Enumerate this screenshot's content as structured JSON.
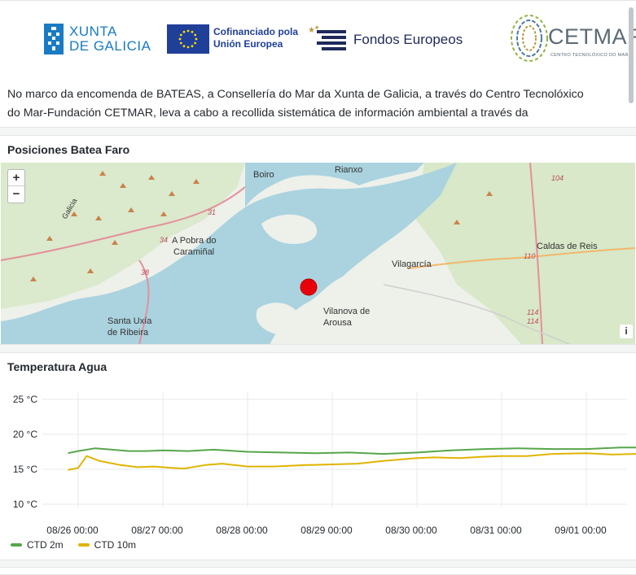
{
  "intro": {
    "logos": {
      "xunta_line1": "XUNTA",
      "xunta_line2": "DE GALICIA",
      "eu_line1": "Cofinanciado pola",
      "eu_line2": "Unión Europea",
      "fondos": "Fondos Europeos",
      "cetmar": "CETMAR",
      "cetmar_sub": "CENTRO TECNOLÓXICO DO MAR"
    },
    "text_line1": "No marco da encomenda de BATEAS, a Consellería do Mar da Xunta de Galicia, a través do Centro Tecnolóxico",
    "text_line2": "do Mar-Fundación CETMAR, leva a cabo a recollida sistemática de información ambiental a través da"
  },
  "map_panel": {
    "title": "Posiciones Batea Faro",
    "zoom_in": "+",
    "zoom_out": "−",
    "attribution": "i",
    "labels": {
      "boiro": "Boiro",
      "rianxo": "Rianxo",
      "pobra1": "A Pobra do",
      "pobra2": "Caramiñal",
      "vilagarcia": "Vilagarcía",
      "caldas": "Caldas de Reis",
      "vilanova1": "Vilanova de",
      "vilanova2": "Arousa",
      "santa1": "Santa Uxía",
      "santa2": "de Ribeira",
      "galicia_road": "Galicia"
    },
    "road_numbers": [
      "31",
      "34",
      "38",
      "104",
      "110",
      "114",
      "114"
    ],
    "marker_color": "#e8000b"
  },
  "temp_panel": {
    "title": "Temperatura Agua",
    "legend": [
      {
        "name": "CTD 2m",
        "color": "#56a64b"
      },
      {
        "name": "CTD 10m",
        "color": "#e0b400"
      }
    ]
  },
  "chart_data": {
    "type": "line",
    "title": "Temperatura Agua",
    "y_ticks": [
      "25 °C",
      "20 °C",
      "15 °C",
      "10 °C"
    ],
    "ylim": [
      10,
      25
    ],
    "x_ticks": [
      "08/26 00:00",
      "08/27 00:00",
      "08/28 00:00",
      "08/29 00:00",
      "08/30 00:00",
      "08/31 00:00",
      "09/01 00:00"
    ],
    "x_days_range": [
      -0.2,
      7.6
    ],
    "grid": true,
    "legend_position": "bottom-left",
    "series": [
      {
        "name": "CTD 2m",
        "color": "#56a64b",
        "points": [
          [
            -0.12,
            17.3
          ],
          [
            0.0,
            17.6
          ],
          [
            0.2,
            18.0
          ],
          [
            0.4,
            17.8
          ],
          [
            0.6,
            17.6
          ],
          [
            0.8,
            17.6
          ],
          [
            1.0,
            17.7
          ],
          [
            1.3,
            17.6
          ],
          [
            1.6,
            17.8
          ],
          [
            2.0,
            17.5
          ],
          [
            2.4,
            17.4
          ],
          [
            2.8,
            17.3
          ],
          [
            3.2,
            17.4
          ],
          [
            3.6,
            17.2
          ],
          [
            4.0,
            17.4
          ],
          [
            4.4,
            17.7
          ],
          [
            4.8,
            17.9
          ],
          [
            5.2,
            18.0
          ],
          [
            5.6,
            17.9
          ],
          [
            6.0,
            17.9
          ],
          [
            6.4,
            18.1
          ],
          [
            6.8,
            18.1
          ],
          [
            7.2,
            18.3
          ],
          [
            7.55,
            18.7
          ]
        ]
      },
      {
        "name": "CTD 10m",
        "color": "#e0b400",
        "points": [
          [
            -0.12,
            14.9
          ],
          [
            0.0,
            15.2
          ],
          [
            0.1,
            16.9
          ],
          [
            0.25,
            16.2
          ],
          [
            0.5,
            15.6
          ],
          [
            0.7,
            15.3
          ],
          [
            0.9,
            15.4
          ],
          [
            1.1,
            15.2
          ],
          [
            1.25,
            15.1
          ],
          [
            1.5,
            15.6
          ],
          [
            1.7,
            15.8
          ],
          [
            2.0,
            15.4
          ],
          [
            2.3,
            15.4
          ],
          [
            2.7,
            15.6
          ],
          [
            3.0,
            15.7
          ],
          [
            3.3,
            15.8
          ],
          [
            3.6,
            16.2
          ],
          [
            3.8,
            16.4
          ],
          [
            4.0,
            16.6
          ],
          [
            4.2,
            16.7
          ],
          [
            4.5,
            16.6
          ],
          [
            4.8,
            16.8
          ],
          [
            5.0,
            16.9
          ],
          [
            5.3,
            16.9
          ],
          [
            5.6,
            17.2
          ],
          [
            6.0,
            17.3
          ],
          [
            6.3,
            17.1
          ],
          [
            6.6,
            17.2
          ],
          [
            6.9,
            17.6
          ],
          [
            7.1,
            17.4
          ],
          [
            7.3,
            17.0
          ],
          [
            7.55,
            17.4
          ]
        ]
      }
    ]
  }
}
